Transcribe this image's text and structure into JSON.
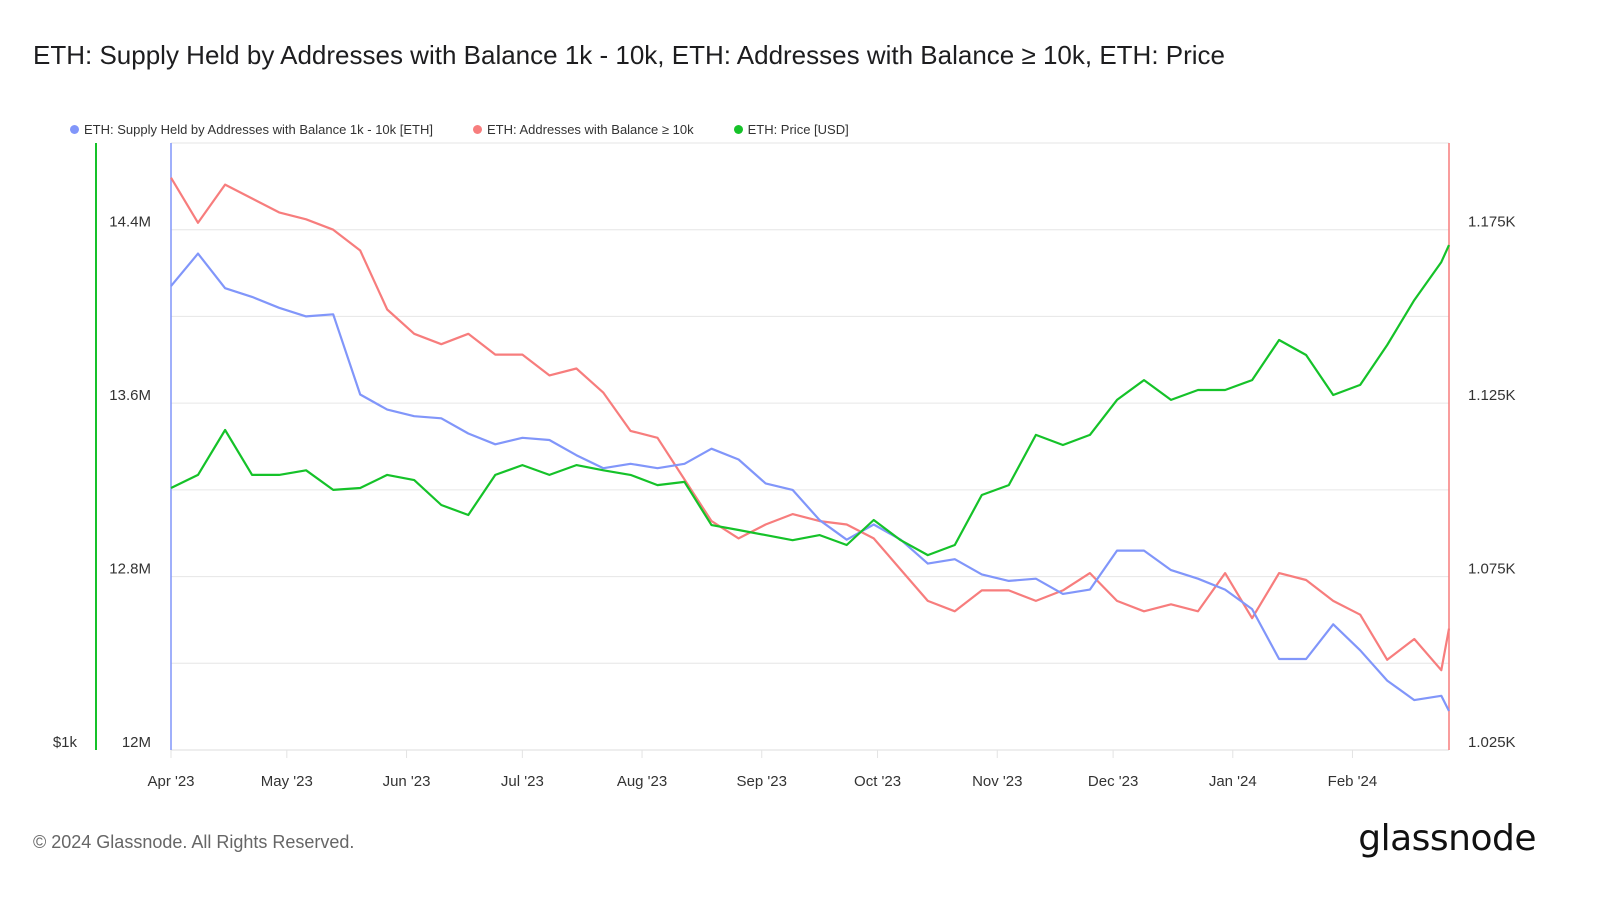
{
  "title": "ETH: Supply Held by Addresses with Balance 1k - 10k, ETH: Addresses with Balance ≥ 10k, ETH: Price",
  "footer": {
    "copyright": "© 2024 Glassnode. All Rights Reserved.",
    "logo": "glassnode"
  },
  "colors": {
    "supply": "#8196fa",
    "addresses": "#f77d7d",
    "price": "#15c229",
    "grid": "#e6e6e6"
  },
  "chart_data": {
    "type": "line",
    "title": "ETH: Supply Held by Addresses with Balance 1k - 10k, ETH: Addresses with Balance ≥ 10k, ETH: Price",
    "grid": true,
    "legend_placement": "top-left",
    "x_range": [
      "2023-04-01",
      "2024-02-26"
    ],
    "x_ticks": [
      {
        "label": "Apr '23",
        "date": "2023-04-01"
      },
      {
        "label": "May '23",
        "date": "2023-05-01"
      },
      {
        "label": "Jun '23",
        "date": "2023-06-01"
      },
      {
        "label": "Jul '23",
        "date": "2023-07-01"
      },
      {
        "label": "Aug '23",
        "date": "2023-08-01"
      },
      {
        "label": "Sep '23",
        "date": "2023-09-01"
      },
      {
        "label": "Oct '23",
        "date": "2023-10-01"
      },
      {
        "label": "Nov '23",
        "date": "2023-11-01"
      },
      {
        "label": "Dec '23",
        "date": "2023-12-01"
      },
      {
        "label": "Jan '24",
        "date": "2024-01-01"
      },
      {
        "label": "Feb '24",
        "date": "2024-02-01"
      }
    ],
    "axes": {
      "supply": {
        "side": "left",
        "unit": "M",
        "range": [
          12.0,
          14.8
        ],
        "ticks": [
          {
            "v": 12.0,
            "label": "12M"
          },
          {
            "v": 12.8,
            "label": "12.8M"
          },
          {
            "v": 13.6,
            "label": "13.6M"
          },
          {
            "v": 14.4,
            "label": "14.4M"
          }
        ]
      },
      "addresses": {
        "side": "right",
        "unit": "K",
        "range": [
          1.025,
          1.2
        ],
        "ticks": [
          {
            "v": 1.025,
            "label": "1.025K"
          },
          {
            "v": 1.075,
            "label": "1.075K"
          },
          {
            "v": 1.125,
            "label": "1.125K"
          },
          {
            "v": 1.175,
            "label": "1.175K"
          }
        ]
      },
      "price": {
        "side": "left-outer",
        "scale": "log",
        "range": [
          1000,
          4500
        ],
        "ticks": [
          {
            "v": 1000,
            "label": "$1k"
          }
        ]
      }
    },
    "x": [
      "2023-04-01",
      "2023-04-08",
      "2023-04-15",
      "2023-04-22",
      "2023-04-29",
      "2023-05-06",
      "2023-05-13",
      "2023-05-20",
      "2023-05-27",
      "2023-06-03",
      "2023-06-10",
      "2023-06-17",
      "2023-06-24",
      "2023-07-01",
      "2023-07-08",
      "2023-07-15",
      "2023-07-22",
      "2023-07-29",
      "2023-08-05",
      "2023-08-12",
      "2023-08-19",
      "2023-08-26",
      "2023-09-02",
      "2023-09-09",
      "2023-09-16",
      "2023-09-23",
      "2023-09-30",
      "2023-10-07",
      "2023-10-14",
      "2023-10-21",
      "2023-10-28",
      "2023-11-04",
      "2023-11-11",
      "2023-11-18",
      "2023-11-25",
      "2023-12-02",
      "2023-12-09",
      "2023-12-16",
      "2023-12-23",
      "2023-12-30",
      "2024-01-06",
      "2024-01-13",
      "2024-01-20",
      "2024-01-27",
      "2024-02-03",
      "2024-02-10",
      "2024-02-17",
      "2024-02-24",
      "2024-02-26"
    ],
    "series": [
      {
        "name": "ETH: Supply Held by Addresses with Balance 1k - 10k [ETH]",
        "axis": "supply",
        "key": "supply",
        "values": [
          14.14,
          14.29,
          14.13,
          14.09,
          14.04,
          14.0,
          14.01,
          13.64,
          13.57,
          13.54,
          13.53,
          13.46,
          13.41,
          13.44,
          13.43,
          13.36,
          13.3,
          13.32,
          13.3,
          13.32,
          13.39,
          13.34,
          13.23,
          13.2,
          13.06,
          12.97,
          13.04,
          12.97,
          12.86,
          12.88,
          12.81,
          12.78,
          12.79,
          12.72,
          12.74,
          12.92,
          12.92,
          12.83,
          12.79,
          12.74,
          12.65,
          12.42,
          12.42,
          12.58,
          12.46,
          12.32,
          12.23,
          12.25,
          12.18
        ]
      },
      {
        "name": "ETH: Addresses with Balance ≥ 10k",
        "axis": "addresses",
        "key": "addresses",
        "values": [
          1.19,
          1.177,
          1.188,
          1.184,
          1.18,
          1.178,
          1.175,
          1.169,
          1.152,
          1.145,
          1.142,
          1.145,
          1.139,
          1.139,
          1.133,
          1.135,
          1.128,
          1.117,
          1.115,
          1.103,
          1.091,
          1.086,
          1.09,
          1.093,
          1.091,
          1.09,
          1.086,
          1.077,
          1.068,
          1.065,
          1.071,
          1.071,
          1.068,
          1.071,
          1.076,
          1.068,
          1.065,
          1.067,
          1.065,
          1.076,
          1.063,
          1.076,
          1.074,
          1.068,
          1.064,
          1.051,
          1.057,
          1.048,
          1.06
        ]
      },
      {
        "name": "ETH: Price [USD]",
        "axis": "price",
        "key": "price",
        "values": [
          1914,
          1977,
          2210,
          1977,
          1977,
          2000,
          1905,
          1914,
          1977,
          1952,
          1835,
          1790,
          1977,
          2026,
          1977,
          2026,
          2000,
          1977,
          1928,
          1943,
          1746,
          1725,
          1703,
          1682,
          1703,
          1662,
          1768,
          1682,
          1621,
          1662,
          1881,
          1928,
          2183,
          2129,
          2183,
          2381,
          2501,
          2381,
          2440,
          2440,
          2501,
          2762,
          2661,
          2410,
          2471,
          2728,
          3049,
          3350,
          3494
        ]
      }
    ]
  }
}
